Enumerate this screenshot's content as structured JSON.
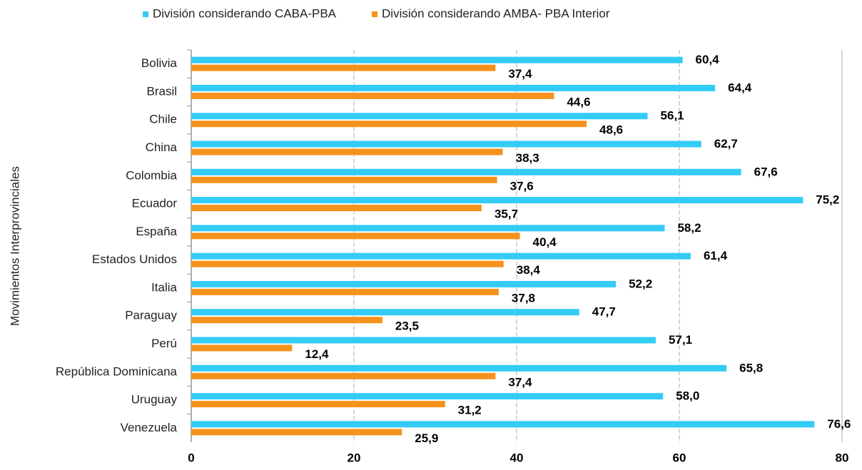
{
  "chart_data": {
    "type": "barh",
    "y_label": "Movimientos Interprovinciales",
    "categories": [
      "Bolivia",
      "Brasil",
      "Chile",
      "China",
      "Colombia",
      "Ecuador",
      "España",
      "Estados Unidos",
      "Italia",
      "Paraguay",
      "Perú",
      "República Dominicana",
      "Uruguay",
      "Venezuela"
    ],
    "series": [
      {
        "name": "División considerando CABA-PBA",
        "color": "#33ccf5",
        "values": [
          60.4,
          64.4,
          56.1,
          62.7,
          67.6,
          75.2,
          58.2,
          61.4,
          52.2,
          47.7,
          57.1,
          65.8,
          58.0,
          76.6
        ],
        "value_labels": [
          "60,4",
          "64,4",
          "56,1",
          "62,7",
          "67,6",
          "75,2",
          "58,2",
          "61,4",
          "52,2",
          "47,7",
          "57,1",
          "65,8",
          "58,0",
          "76,6"
        ]
      },
      {
        "name": "División considerando AMBA- PBA Interior",
        "color": "#f5921e",
        "values": [
          37.4,
          44.6,
          48.6,
          38.3,
          37.6,
          35.7,
          40.4,
          38.4,
          37.8,
          23.5,
          12.4,
          37.4,
          31.2,
          25.9
        ],
        "value_labels": [
          "37,4",
          "44,6",
          "48,6",
          "38,3",
          "37,6",
          "35,7",
          "40,4",
          "38,4",
          "37,8",
          "23,5",
          "12,4",
          "37,4",
          "31,2",
          "25,9"
        ]
      }
    ],
    "xlim": [
      0,
      80
    ],
    "xticks": [
      0,
      20,
      40,
      60,
      80
    ],
    "grid": true,
    "legend": "top"
  }
}
